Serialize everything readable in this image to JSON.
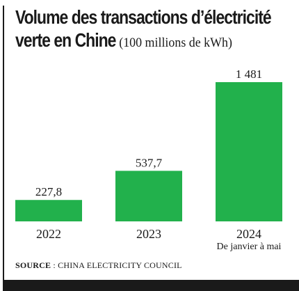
{
  "title": {
    "line1": "Volume des transactions d’électricité",
    "line2": "verte en Chine",
    "unit": "(100 millions de kWh)"
  },
  "source": {
    "label": "SOURCE",
    "separator": " : ",
    "text": "CHINA ELECTRICITY COUNCIL"
  },
  "colors": {
    "bar": "#22b14c",
    "text": "#1a1a1a"
  },
  "chart_data": {
    "type": "bar",
    "categories": [
      "2022",
      "2023",
      "2024"
    ],
    "category_notes": [
      "",
      "",
      "De janvier à mai"
    ],
    "values": [
      227.8,
      537.7,
      1481
    ],
    "value_labels": [
      "227,8",
      "537,7",
      "1 481"
    ],
    "title": "Volume des transactions d’électricité verte en Chine",
    "ylabel": "(100 millions de kWh)",
    "xlabel": "",
    "ylim": [
      0,
      1481
    ],
    "grid": false,
    "legend": "none"
  }
}
